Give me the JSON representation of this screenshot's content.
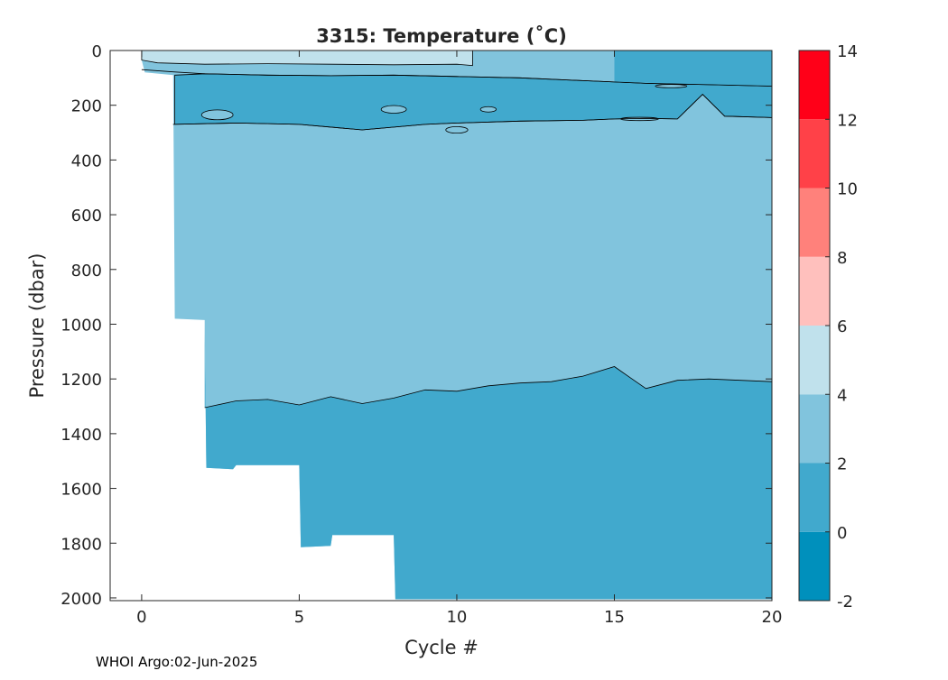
{
  "chart_data": {
    "type": "heatmap",
    "title": "3315:  Temperature (˚C)",
    "xlabel": "Cycle #",
    "ylabel": "Pressure (dbar)",
    "xlim": [
      -1,
      20
    ],
    "ylim": [
      2010,
      0
    ],
    "x_ticks": [
      "0",
      "5",
      "10",
      "15",
      "20"
    ],
    "y_ticks": [
      "0",
      "200",
      "400",
      "600",
      "800",
      "1000",
      "1200",
      "1400",
      "1600",
      "1800",
      "2000"
    ],
    "colorbar": {
      "ticks": [
        "-2",
        "0",
        "2",
        "4",
        "6",
        "8",
        "10",
        "12",
        "14"
      ],
      "levels": [
        {
          "from": -2,
          "to": 0,
          "color": "#0090BC"
        },
        {
          "from": 0,
          "to": 2,
          "color": "#41A9CD"
        },
        {
          "from": 2,
          "to": 4,
          "color": "#81C4DD"
        },
        {
          "from": 4,
          "to": 6,
          "color": "#C0E1EC"
        },
        {
          "from": 6,
          "to": 8,
          "color": "#FFC0BD"
        },
        {
          "from": 8,
          "to": 10,
          "color": "#FF817B"
        },
        {
          "from": 10,
          "to": 12,
          "color": "#FF4148"
        },
        {
          "from": 12,
          "to": 14,
          "color": "#FF0018"
        }
      ]
    },
    "profile_max_pressure": [
      [
        0,
        35
      ],
      [
        0.1,
        80
      ],
      [
        1,
        90
      ],
      [
        1.05,
        980
      ],
      [
        2,
        985
      ],
      [
        2.05,
        1525
      ],
      [
        2.9,
        1530
      ],
      [
        3,
        1515
      ],
      [
        5,
        1515
      ],
      [
        5.05,
        1815
      ],
      [
        6,
        1810
      ],
      [
        6.05,
        1770
      ],
      [
        8,
        1770
      ],
      [
        8.05,
        2005
      ],
      [
        20,
        2005
      ]
    ],
    "isotherm_4C": [
      [
        0,
        35
      ],
      [
        0.5,
        45
      ],
      [
        2,
        50
      ],
      [
        4,
        48
      ],
      [
        6,
        50
      ],
      [
        8,
        52
      ],
      [
        10,
        50
      ],
      [
        10.5,
        55
      ]
    ],
    "isotherm_2C_upper": [
      [
        0,
        70
      ],
      [
        1,
        78
      ],
      [
        2,
        85
      ],
      [
        4,
        90
      ],
      [
        6,
        92
      ],
      [
        8,
        90
      ],
      [
        10,
        95
      ],
      [
        12,
        100
      ],
      [
        14,
        110
      ],
      [
        15,
        115
      ],
      [
        16,
        120
      ],
      [
        18,
        125
      ],
      [
        20,
        130
      ]
    ],
    "isotherm_2C_lower": [
      [
        1,
        270
      ],
      [
        3,
        265
      ],
      [
        5,
        270
      ],
      [
        7,
        290
      ],
      [
        9,
        270
      ],
      [
        10,
        265
      ],
      [
        12,
        258
      ],
      [
        14,
        255
      ],
      [
        15,
        250
      ],
      [
        16,
        248
      ],
      [
        17,
        250
      ],
      [
        17.8,
        160
      ],
      [
        18.5,
        240
      ],
      [
        20,
        245
      ]
    ],
    "isotherm_2C_deep": [
      [
        2,
        1305
      ],
      [
        3,
        1280
      ],
      [
        4,
        1275
      ],
      [
        5,
        1295
      ],
      [
        6,
        1265
      ],
      [
        7,
        1290
      ],
      [
        8,
        1270
      ],
      [
        9,
        1240
      ],
      [
        10,
        1245
      ],
      [
        11,
        1225
      ],
      [
        12,
        1215
      ],
      [
        13,
        1210
      ],
      [
        14,
        1190
      ],
      [
        15,
        1155
      ],
      [
        15.5,
        1195
      ],
      [
        16,
        1235
      ],
      [
        17,
        1205
      ],
      [
        18,
        1200
      ],
      [
        20,
        1210
      ]
    ],
    "eddies": [
      {
        "x": 10,
        "y": 290,
        "rx": 0.35,
        "ry": 12
      },
      {
        "x": 11,
        "y": 215,
        "rx": 0.25,
        "ry": 10
      },
      {
        "x": 2.4,
        "y": 235,
        "rx": 0.5,
        "ry": 18
      },
      {
        "x": 15.8,
        "y": 250,
        "rx": 0.6,
        "ry": 6
      },
      {
        "x": 16.8,
        "y": 130,
        "rx": 0.5,
        "ry": 6
      },
      {
        "x": 8,
        "y": 215,
        "rx": 0.4,
        "ry": 14
      }
    ],
    "footer": "WHOI Argo:02-Jun-2025"
  }
}
